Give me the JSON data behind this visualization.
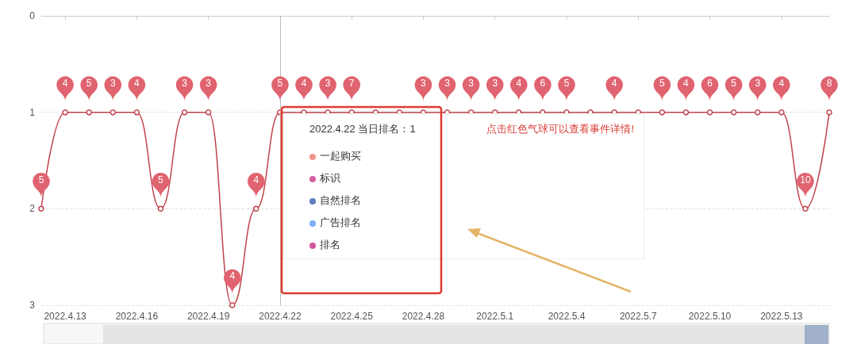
{
  "chart_data": {
    "type": "line",
    "x": [
      "2022-04-12",
      "2022-04-13",
      "2022-04-14",
      "2022-04-15",
      "2022-04-16",
      "2022-04-17",
      "2022-04-18",
      "2022-04-19",
      "2022-04-20",
      "2022-04-21",
      "2022-04-22",
      "2022-04-23",
      "2022-04-24",
      "2022-04-25",
      "2022-04-26",
      "2022-04-27",
      "2022-04-28",
      "2022-04-29",
      "2022-04-30",
      "2022-05-01",
      "2022-05-02",
      "2022-05-03",
      "2022-05-04",
      "2022-05-05",
      "2022-05-06",
      "2022-05-07",
      "2022-05-08",
      "2022-05-09",
      "2022-05-10",
      "2022-05-11",
      "2022-05-12",
      "2022-05-13",
      "2022-05-14",
      "2022-05-15"
    ],
    "series": [
      {
        "color": "#c0424b",
        "values": [
          2,
          1,
          1,
          1,
          1,
          2,
          1,
          1,
          3,
          2,
          1,
          1,
          1,
          1,
          1,
          1,
          1,
          1,
          1,
          1,
          1,
          1,
          1,
          1,
          1,
          1,
          1,
          1,
          1,
          1,
          1,
          1,
          2,
          1
        ]
      }
    ],
    "xlim": [
      "2022-04-12",
      "2022-05-15"
    ],
    "xticks": [
      {
        "value": "2022-04-13",
        "label": "2022.4.13"
      },
      {
        "value": "2022-04-16",
        "label": "2022.4.16"
      },
      {
        "value": "2022-04-19",
        "label": "2022.4.19"
      },
      {
        "value": "2022-04-22",
        "label": "2022.4.22"
      },
      {
        "value": "2022-04-25",
        "label": "2022.4.25"
      },
      {
        "value": "2022-04-28",
        "label": "2022.4.28"
      },
      {
        "value": "2022-05-01",
        "label": "2022.5.1"
      },
      {
        "value": "2022-05-04",
        "label": "2022.5.4"
      },
      {
        "value": "2022-05-07",
        "label": "2022.5.7"
      },
      {
        "value": "2022-05-10",
        "label": "2022.5.10"
      },
      {
        "value": "2022-05-13",
        "label": "2022.5.13"
      }
    ],
    "ylim": [
      3,
      0
    ],
    "yticks": [
      0,
      1,
      2,
      3
    ],
    "grid": "y",
    "marker": "circle",
    "line_style": "solid",
    "ref_lines": [
      {
        "axis": "x",
        "value": "2022-04-22",
        "color": "#bbbbbb"
      }
    ],
    "annotations": [
      "2022.4.22 当日排名：1",
      "点击红色气球可以查看事件详情!",
      "一起购买",
      "标识",
      "自然排名",
      "广告排名",
      "排名",
      {
        "text": "5",
        "x": "2022-04-12",
        "y": 2
      },
      {
        "text": "4",
        "x": "2022-04-13",
        "y": 1
      },
      {
        "text": "5",
        "x": "2022-04-14",
        "y": 1
      },
      {
        "text": "3",
        "x": "2022-04-15",
        "y": 1
      },
      {
        "text": "4",
        "x": "2022-04-16",
        "y": 1
      },
      {
        "text": "5",
        "x": "2022-04-17",
        "y": 2
      },
      {
        "text": "3",
        "x": "2022-04-18",
        "y": 1
      },
      {
        "text": "3",
        "x": "2022-04-19",
        "y": 1
      },
      {
        "text": "4",
        "x": "2022-04-20",
        "y": 3
      },
      {
        "text": "4",
        "x": "2022-04-21",
        "y": 2
      },
      {
        "text": "5",
        "x": "2022-04-22",
        "y": 1
      },
      {
        "text": "4",
        "x": "2022-04-23",
        "y": 1
      },
      {
        "text": "3",
        "x": "2022-04-24",
        "y": 1
      },
      {
        "text": "7",
        "x": "2022-04-25",
        "y": 1
      },
      {
        "text": "3",
        "x": "2022-04-28",
        "y": 1
      },
      {
        "text": "3",
        "x": "2022-04-29",
        "y": 1
      },
      {
        "text": "3",
        "x": "2022-04-30",
        "y": 1
      },
      {
        "text": "3",
        "x": "2022-05-01",
        "y": 1
      },
      {
        "text": "4",
        "x": "2022-05-02",
        "y": 1
      },
      {
        "text": "6",
        "x": "2022-05-03",
        "y": 1
      },
      {
        "text": "5",
        "x": "2022-05-04",
        "y": 1
      },
      {
        "text": "4",
        "x": "2022-05-06",
        "y": 1
      },
      {
        "text": "5",
        "x": "2022-05-08",
        "y": 1
      },
      {
        "text": "4",
        "x": "2022-05-09",
        "y": 1
      },
      {
        "text": "6",
        "x": "2022-05-10",
        "y": 1
      },
      {
        "text": "5",
        "x": "2022-05-11",
        "y": 1
      },
      {
        "text": "3",
        "x": "2022-05-12",
        "y": 1
      },
      {
        "text": "4",
        "x": "2022-05-13",
        "y": 1
      },
      {
        "text": "10",
        "x": "2022-05-14",
        "y": 2
      },
      {
        "text": "8",
        "x": "2022-05-15",
        "y": 1
      }
    ]
  }
}
